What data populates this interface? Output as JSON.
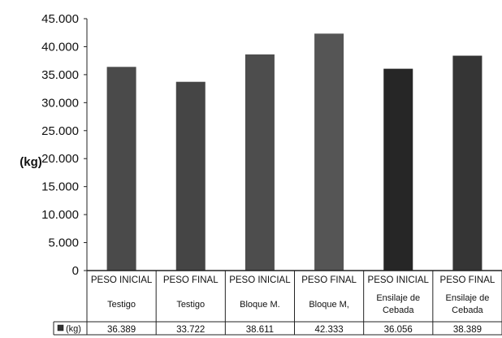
{
  "chart_data": {
    "type": "bar",
    "ylabel": "(kg)",
    "ylim": [
      0,
      45000
    ],
    "yticks": [
      "0",
      "5.000",
      "10.000",
      "15.000",
      "20.000",
      "25.000",
      "30.000",
      "35.000",
      "40.000",
      "45.000"
    ],
    "categories": [
      {
        "line1": "PESO INICIAL",
        "line2": "Testigo"
      },
      {
        "line1": "PESO FINAL",
        "line2": "Testigo"
      },
      {
        "line1": "PESO INICIAL",
        "line2": "Bloque M."
      },
      {
        "line1": "PESO FINAL",
        "line2": "Bloque M,"
      },
      {
        "line1": "PESO INICIAL",
        "line2": "Ensilaje de Cebada"
      },
      {
        "line1": "PESO FINAL",
        "line2": "Ensilaje de Cebada"
      }
    ],
    "series": [
      {
        "name": "(kg)",
        "values": [
          36389,
          33722,
          38611,
          42333,
          36056,
          38389
        ],
        "labels": [
          "36.389",
          "33.722",
          "38.611",
          "42.333",
          "36.056",
          "38.389"
        ]
      }
    ],
    "bar_colors": [
      "#4a4a4a",
      "#454545",
      "#4d4d4d",
      "#555555",
      "#262626",
      "#353535"
    ],
    "grid": false,
    "legend": "table-row"
  }
}
